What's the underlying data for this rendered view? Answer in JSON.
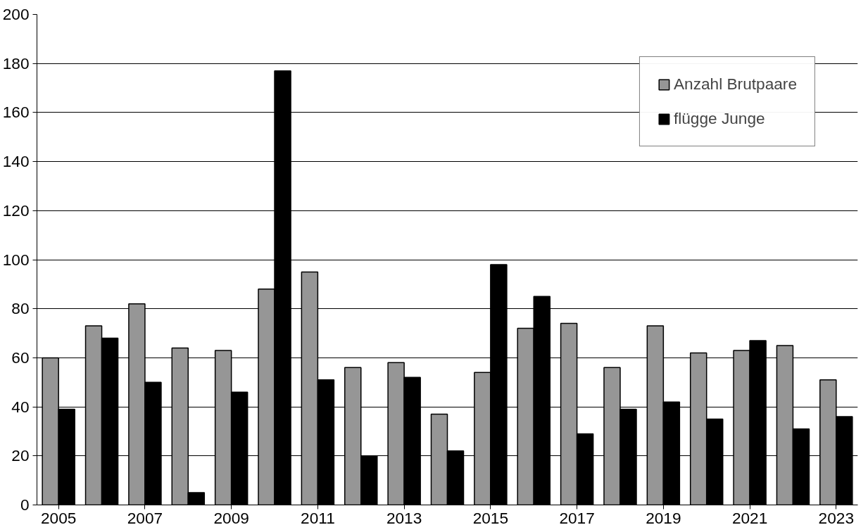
{
  "chart_data": {
    "type": "bar",
    "categories": [
      "2005",
      null,
      "2007",
      null,
      "2009",
      null,
      "2011",
      null,
      "2013",
      null,
      "2015",
      null,
      "2017",
      null,
      "2019",
      null,
      "2021",
      null,
      "2023"
    ],
    "series": [
      {
        "name": "Anzahl Brutpaare",
        "color": "#969696",
        "values": [
          60,
          73,
          82,
          64,
          63,
          88,
          95,
          56,
          58,
          37,
          54,
          72,
          74,
          56,
          73,
          62,
          63,
          65,
          51
        ]
      },
      {
        "name": "flügge Junge",
        "color": "#000000",
        "values": [
          39,
          68,
          50,
          5,
          46,
          177,
          51,
          20,
          52,
          22,
          98,
          85,
          29,
          39,
          42,
          35,
          67,
          31,
          36
        ]
      }
    ],
    "ylim": [
      0,
      200
    ],
    "yticks": [
      0,
      20,
      40,
      60,
      80,
      100,
      120,
      140,
      160,
      180,
      200
    ],
    "grid": "y",
    "legend": "top right"
  }
}
